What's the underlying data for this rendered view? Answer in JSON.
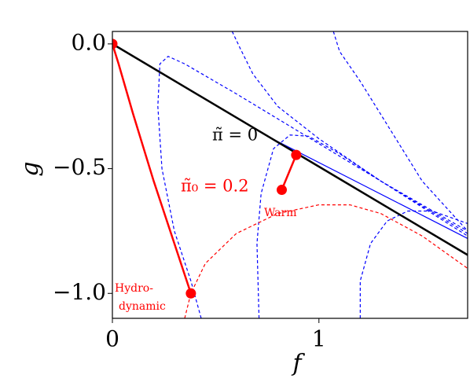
{
  "chart_data": {
    "type": "line",
    "x_label": "f",
    "y_label": "g",
    "annotations": {
      "pi_line": "π̃ = 0",
      "pi0": "π̃₀ = 0.2",
      "warm": "Warm",
      "hydro_1": "Hydro-",
      "hydro_2": "dynamic"
    },
    "xlim": [
      0,
      1.72
    ],
    "ylim": [
      -1.1,
      0.05
    ],
    "xticks": [
      0,
      1
    ],
    "yticks": [
      {
        "value": -1.0,
        "label": "−1.0"
      },
      {
        "value": -0.5,
        "label": "−0.5"
      },
      {
        "value": 0.0,
        "label": "0.0"
      }
    ],
    "series": [
      {
        "color": "#0000ff",
        "style": "dashed",
        "width": 1.2,
        "x": [
          0.43,
          0.38,
          0.3,
          0.24,
          0.22,
          0.23,
          0.27,
          0.35,
          0.6,
          1.0,
          1.4,
          1.72
        ],
        "y": [
          -1.1,
          -0.95,
          -0.75,
          -0.5,
          -0.25,
          -0.08,
          -0.05,
          -0.08,
          -0.2,
          -0.4,
          -0.6,
          -0.76
        ]
      },
      {
        "color": "#0000ff",
        "style": "dashed",
        "width": 1.2,
        "x": [
          0.58,
          0.62,
          0.68,
          0.8,
          1.0,
          1.3,
          1.72
        ],
        "y": [
          0.05,
          -0.02,
          -0.12,
          -0.25,
          -0.38,
          -0.55,
          -0.77
        ]
      },
      {
        "color": "#0000ff",
        "style": "dashed",
        "width": 1.2,
        "x": [
          1.07,
          1.1,
          1.2,
          1.35,
          1.5,
          1.72
        ],
        "y": [
          0.05,
          -0.03,
          -0.15,
          -0.35,
          -0.55,
          -0.75
        ]
      },
      {
        "color": "#0000ff",
        "style": "dashed",
        "width": 1.2,
        "x": [
          0.71,
          0.7,
          0.72,
          0.78,
          0.86,
          0.95,
          1.1,
          1.3,
          1.72
        ],
        "y": [
          -1.1,
          -0.8,
          -0.6,
          -0.42,
          -0.365,
          -0.37,
          -0.44,
          -0.55,
          -0.75
        ]
      },
      {
        "color": "#0000ff",
        "style": "dashed",
        "width": 1.2,
        "x": [
          1.2,
          1.2,
          1.25,
          1.33,
          1.43,
          1.55,
          1.72
        ],
        "y": [
          -1.1,
          -0.95,
          -0.8,
          -0.71,
          -0.67,
          -0.67,
          -0.72
        ]
      },
      {
        "color": "#0000ff",
        "style": "solid",
        "width": 1.2,
        "x": [
          0.75,
          1.2,
          1.72
        ],
        "y": [
          -0.37,
          -0.56,
          -0.78
        ]
      },
      {
        "color": "#ff0000",
        "style": "dashed",
        "width": 1.2,
        "x": [
          0.35,
          0.38,
          0.45,
          0.6,
          0.8,
          1.0,
          1.15,
          1.3,
          1.5,
          1.72
        ],
        "y": [
          -1.1,
          -1.0,
          -0.88,
          -0.76,
          -0.68,
          -0.645,
          -0.645,
          -0.68,
          -0.77,
          -0.9
        ]
      },
      {
        "color": "#000000",
        "style": "solid",
        "width": 2.5,
        "x": [
          0,
          1.72
        ],
        "y": [
          0,
          -0.846
        ]
      },
      {
        "color": "#ff0000",
        "style": "solid",
        "width": 2.5,
        "x": [
          0.38,
          0.3,
          0.2,
          0.1,
          0.03,
          0
        ],
        "y": [
          -1.0,
          -0.8,
          -0.55,
          -0.28,
          -0.08,
          0
        ],
        "markers": true
      },
      {
        "color": "#ff0000",
        "style": "solid",
        "width": 2.5,
        "x": [
          0.82,
          0.89
        ],
        "y": [
          -0.585,
          -0.445
        ],
        "markers": true
      }
    ]
  }
}
